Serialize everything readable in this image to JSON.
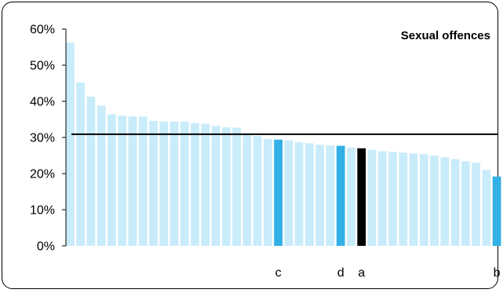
{
  "chart_data": {
    "type": "bar",
    "title": "Sexual offences",
    "ylim": [
      0,
      60
    ],
    "y_ticks": [
      "0%",
      "10%",
      "20%",
      "30%",
      "40%",
      "50%",
      "60%"
    ],
    "y_tick_values": [
      0,
      10,
      20,
      30,
      40,
      50,
      60
    ],
    "reference_line": 30.9,
    "values": [
      56.3,
      45.2,
      41.3,
      38.8,
      36.4,
      36.0,
      35.8,
      35.8,
      34.6,
      34.4,
      34.4,
      34.4,
      34.0,
      33.8,
      33.2,
      32.8,
      32.7,
      30.9,
      30.4,
      29.6,
      29.4,
      29.2,
      28.7,
      28.4,
      28.0,
      27.8,
      27.7,
      27.2,
      27.0,
      26.6,
      26.2,
      26.0,
      25.8,
      25.6,
      25.4,
      25.0,
      24.5,
      24.0,
      23.4,
      23.0,
      21.0,
      19.2
    ],
    "highlighted": [
      {
        "index": 20,
        "label": "c",
        "color": "#33b0e6"
      },
      {
        "index": 26,
        "label": "d",
        "color": "#33b0e6"
      },
      {
        "index": 28,
        "label": "a",
        "color": "#000000"
      },
      {
        "index": 41,
        "label": "b",
        "color": "#33b0e6"
      }
    ],
    "colors": {
      "bar": "#c9ecfa",
      "line": "#000000"
    }
  }
}
